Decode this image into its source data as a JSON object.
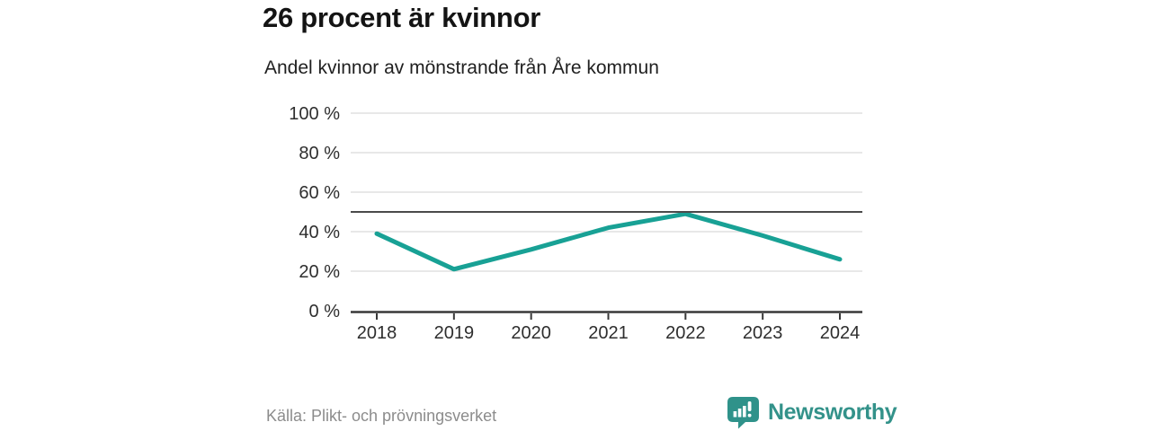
{
  "header": {
    "title": "26 procent är kvinnor",
    "subtitle": "Andel kvinnor av mönstrande från Åre kommun"
  },
  "chart_data": {
    "type": "line",
    "title": "26 procent är kvinnor",
    "subtitle": "Andel kvinnor av mönstrande från Åre kommun",
    "categories": [
      "2018",
      "2019",
      "2020",
      "2021",
      "2022",
      "2023",
      "2024"
    ],
    "series": [
      {
        "name": "Andel kvinnor av mönstrande",
        "values": [
          39,
          21,
          31,
          42,
          49,
          38,
          26
        ]
      }
    ],
    "xlabel": "",
    "ylabel": "",
    "ylim": [
      0,
      100
    ],
    "ytick_values": [
      0,
      20,
      40,
      60,
      80,
      100
    ],
    "ytick_labels": [
      "0 %",
      "20 %",
      "40 %",
      "60 %",
      "80 %",
      "100 %"
    ],
    "reference_line": 50,
    "grid": true,
    "legend_position": "none",
    "colors": {
      "line": "#18a195",
      "grid": "#d9d9d9",
      "reference": "#4a4a4a",
      "axis": "#383838",
      "tick_label": "#2e2e2e"
    }
  },
  "footer": {
    "source": "Källa: Plikt- och prövningsverket",
    "brand": "Newsworthy",
    "brand_color": "#33928a"
  }
}
